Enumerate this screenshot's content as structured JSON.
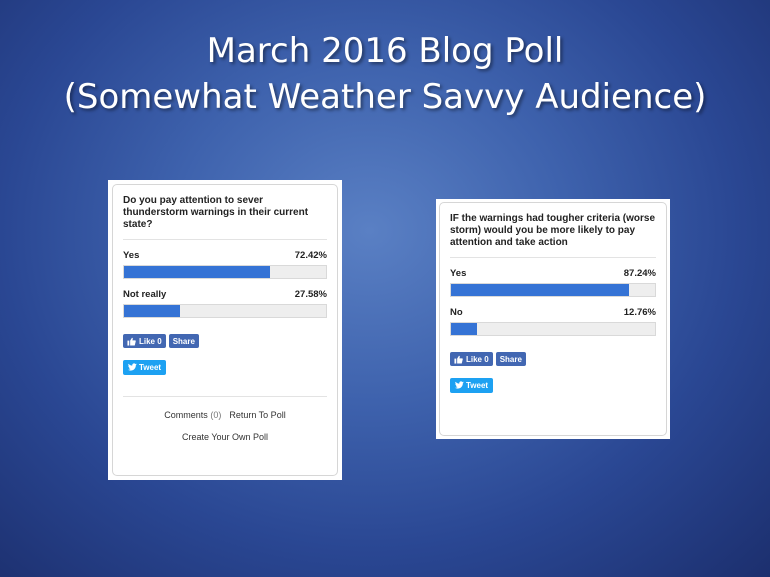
{
  "slide": {
    "title_line1": "March 2016 Blog Poll",
    "title_line2": "(Somewhat Weather Savvy Audience)"
  },
  "colors": {
    "bar_fill": "#3573d5",
    "bar_track": "#eeeeee",
    "facebook": "#4267b2",
    "twitter": "#1da1f2"
  },
  "polls": [
    {
      "question": "Do you pay attention to sever thunderstorm warnings in their current state?",
      "options": [
        {
          "label": "Yes",
          "percent_text": "72.42%",
          "percent": 72.42
        },
        {
          "label": "Not really",
          "percent_text": "27.58%",
          "percent": 27.58
        }
      ],
      "like_label": "Like 0",
      "share_label": "Share",
      "tweet_label": "Tweet",
      "footer": {
        "comments_label": "Comments",
        "comments_count": "(0)",
        "return_label": "Return To Poll",
        "create_label": "Create Your Own Poll"
      }
    },
    {
      "question": "IF the warnings had tougher criteria (worse storm) would you be more likely to pay attention and take action",
      "options": [
        {
          "label": "Yes",
          "percent_text": "87.24%",
          "percent": 87.24
        },
        {
          "label": "No",
          "percent_text": "12.76%",
          "percent": 12.76
        }
      ],
      "like_label": "Like 0",
      "share_label": "Share",
      "tweet_label": "Tweet"
    }
  ]
}
